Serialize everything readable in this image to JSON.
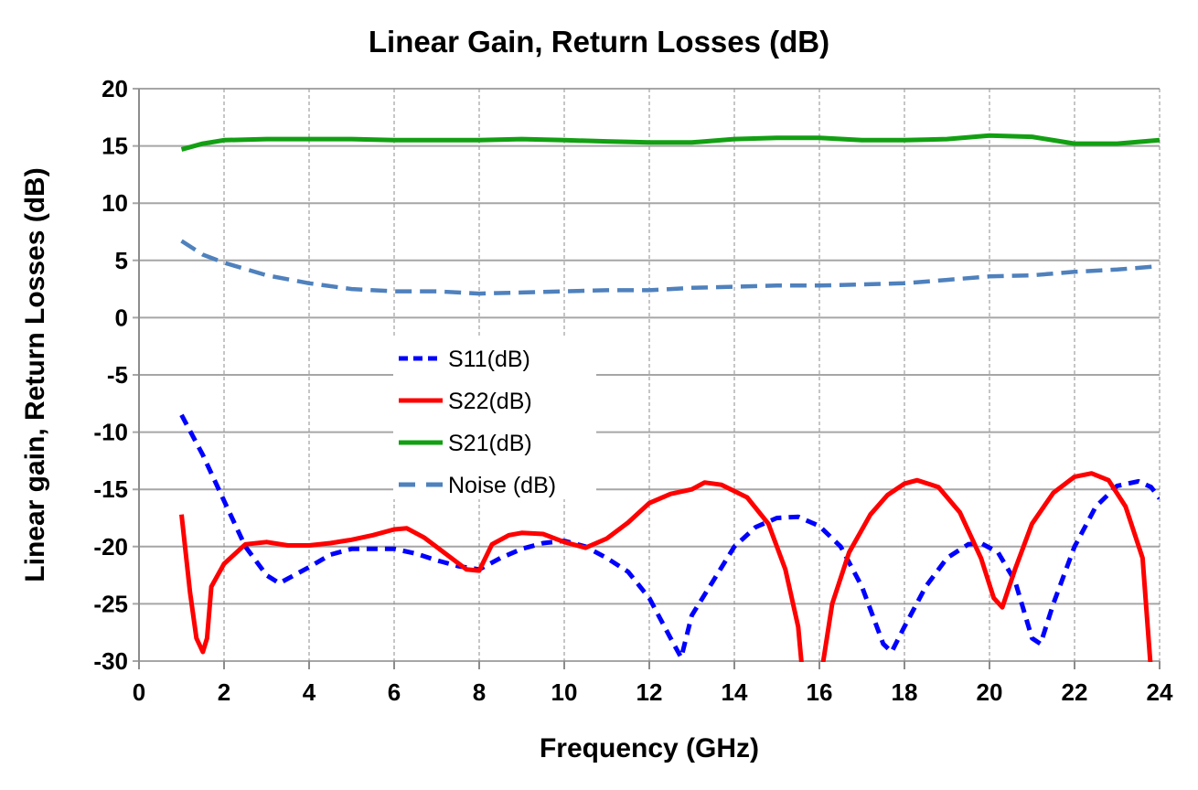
{
  "chart_data": {
    "type": "line",
    "title": "Linear Gain, Return Losses (dB)",
    "xlabel": "Frequency (GHz)",
    "ylabel": "Linear gain, Return Losses (dB)",
    "xlim": [
      0,
      24
    ],
    "ylim": [
      -30,
      20
    ],
    "xticks": [
      0,
      2,
      4,
      6,
      8,
      10,
      12,
      14,
      16,
      18,
      20,
      22,
      24
    ],
    "yticks": [
      20,
      15,
      10,
      5,
      0,
      -5,
      -10,
      -15,
      -20,
      -25,
      -30
    ],
    "grid": true,
    "legend_position": "center-left",
    "series": [
      {
        "name": "S11(dB)",
        "color": "#0000ff",
        "style": "dashed",
        "x": [
          1,
          1.5,
          2,
          2.5,
          3,
          3.3,
          4,
          4.5,
          5,
          6,
          6.5,
          7,
          7.5,
          8,
          8.5,
          9,
          9.5,
          10,
          10.5,
          11,
          11.5,
          12,
          12.5,
          12.75,
          13,
          13.5,
          14,
          14.5,
          15,
          15.5,
          16,
          16.5,
          17,
          17.5,
          17.7,
          18,
          18.5,
          19,
          19.5,
          19.8,
          20.2,
          20.6,
          21,
          21.2,
          21.5,
          22,
          22.5,
          23,
          23.5,
          23.8,
          24
        ],
        "y": [
          -8.5,
          -12,
          -16,
          -20,
          -22.5,
          -23.2,
          -21.8,
          -20.7,
          -20.2,
          -20.2,
          -20.6,
          -21.2,
          -21.7,
          -22,
          -21,
          -20.2,
          -19.7,
          -19.5,
          -20,
          -21,
          -22.2,
          -24.5,
          -28,
          -29.7,
          -26,
          -23,
          -20,
          -18.3,
          -17.5,
          -17.4,
          -18.2,
          -20,
          -23.5,
          -28.5,
          -29.2,
          -27,
          -23.5,
          -21,
          -19.8,
          -19.7,
          -20.5,
          -23,
          -28,
          -28.5,
          -25,
          -20,
          -16.5,
          -14.7,
          -14.3,
          -14.8,
          -15.8
        ]
      },
      {
        "name": "S22(dB)",
        "color": "#ff0000",
        "style": "solid",
        "x": [
          1,
          1.2,
          1.35,
          1.5,
          1.6,
          1.7,
          2,
          2.5,
          3,
          3.5,
          4,
          4.5,
          5,
          5.5,
          6,
          6.3,
          6.7,
          7.2,
          7.7,
          8,
          8.3,
          8.7,
          9,
          9.5,
          10,
          10.5,
          11,
          11.5,
          12,
          12.5,
          13,
          13.3,
          13.7,
          14.3,
          14.8,
          15.2,
          15.5,
          15.6,
          16.05,
          16.3,
          16.7,
          17.2,
          17.6,
          18,
          18.3,
          18.8,
          19.3,
          19.8,
          20.1,
          20.3,
          20.6,
          21,
          21.5,
          22,
          22.4,
          22.8,
          23.2,
          23.6,
          23.8
        ],
        "y": [
          -17.2,
          -24,
          -28,
          -29.2,
          -28,
          -23.5,
          -21.5,
          -19.8,
          -19.6,
          -19.9,
          -19.9,
          -19.7,
          -19.4,
          -19,
          -18.5,
          -18.4,
          -19.2,
          -20.6,
          -22,
          -22.1,
          -19.8,
          -19,
          -18.8,
          -18.9,
          -19.6,
          -20.1,
          -19.3,
          -17.9,
          -16.2,
          -15.4,
          -15,
          -14.4,
          -14.6,
          -15.7,
          -18,
          -22,
          -27,
          -31,
          -31,
          -25,
          -20.5,
          -17.2,
          -15.5,
          -14.5,
          -14.2,
          -14.8,
          -17,
          -21,
          -24.5,
          -25.3,
          -22,
          -18,
          -15.3,
          -13.9,
          -13.6,
          -14.2,
          -16.5,
          -21,
          -31
        ]
      },
      {
        "name": "S21(dB)",
        "color": "#12a012",
        "style": "solid",
        "x": [
          1,
          1.5,
          2,
          3,
          4,
          5,
          6,
          7,
          8,
          9,
          10,
          11,
          12,
          13,
          14,
          15,
          16,
          17,
          18,
          19,
          20,
          21,
          22,
          23,
          24
        ],
        "y": [
          14.7,
          15.2,
          15.5,
          15.6,
          15.6,
          15.6,
          15.5,
          15.5,
          15.5,
          15.6,
          15.5,
          15.4,
          15.3,
          15.3,
          15.6,
          15.7,
          15.7,
          15.5,
          15.5,
          15.6,
          15.9,
          15.8,
          15.2,
          15.2,
          15.5
        ]
      },
      {
        "name": "Noise (dB)",
        "color": "#4f81bd",
        "style": "dashed",
        "x": [
          1,
          1.5,
          2,
          3,
          4,
          5,
          6,
          7,
          8,
          9,
          10,
          11,
          12,
          13,
          14,
          15,
          16,
          17,
          18,
          19,
          20,
          21,
          22,
          23,
          24
        ],
        "y": [
          6.7,
          5.5,
          4.8,
          3.7,
          3,
          2.5,
          2.3,
          2.3,
          2.1,
          2.2,
          2.3,
          2.4,
          2.4,
          2.6,
          2.7,
          2.8,
          2.8,
          2.9,
          3.0,
          3.3,
          3.6,
          3.7,
          4.0,
          4.2,
          4.5
        ]
      }
    ]
  }
}
